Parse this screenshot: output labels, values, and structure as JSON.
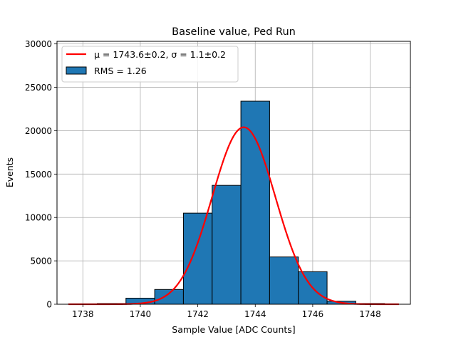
{
  "chart_data": {
    "type": "bar",
    "title": "Baseline value, Ped Run",
    "xlabel": "Sample Value [ADC Counts]",
    "ylabel": "Events",
    "xlim": [
      1737.1,
      1749.4
    ],
    "ylim": [
      0,
      30300
    ],
    "grid": true,
    "xticks": [
      1738,
      1740,
      1742,
      1744,
      1746,
      1748
    ],
    "yticks": [
      0,
      5000,
      10000,
      15000,
      20000,
      25000,
      30000
    ],
    "histogram": {
      "bin_edges": [
        1737.5,
        1738.5,
        1739.5,
        1740.5,
        1741.5,
        1742.5,
        1743.5,
        1744.5,
        1745.5,
        1746.5,
        1747.5,
        1748.5
      ],
      "counts": [
        30,
        80,
        700,
        1700,
        10500,
        13700,
        23400,
        5450,
        3750,
        350,
        80
      ],
      "color": "#1f77b4",
      "edgecolor": "#000000"
    },
    "fit": {
      "type": "gaussian",
      "mu": 1743.6,
      "sigma": 1.1,
      "amplitude": 20400,
      "x_range": [
        1737.5,
        1749.0
      ],
      "color": "#ff0000"
    },
    "legend": {
      "position": "top-left",
      "entries": [
        {
          "kind": "line",
          "color": "#ff0000",
          "label": "μ = 1743.6±0.2, σ = 1.1±0.2"
        },
        {
          "kind": "patch",
          "color": "#1f77b4",
          "label": "RMS = 1.26"
        }
      ]
    }
  }
}
